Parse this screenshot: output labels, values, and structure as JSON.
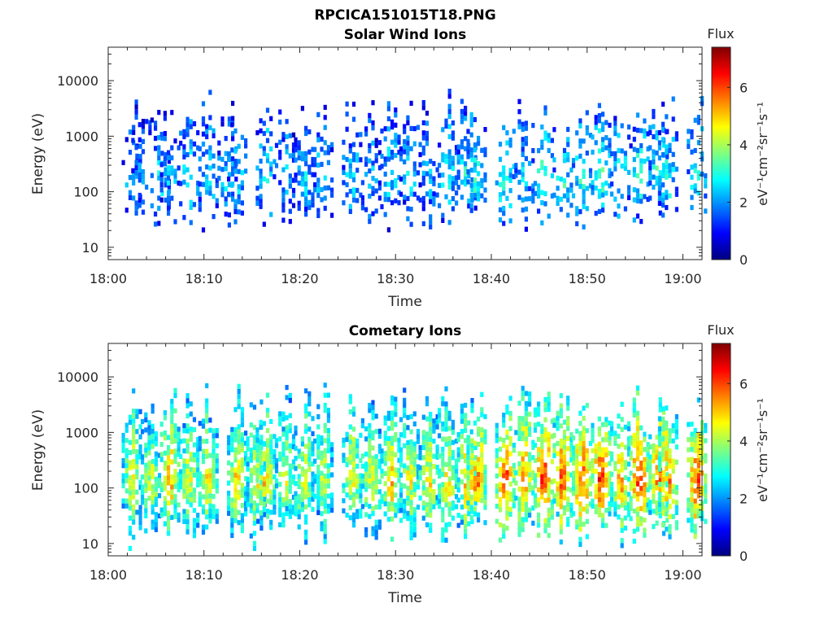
{
  "figure": {
    "title": "RPCICA151015T18.PNG"
  },
  "colormap": [
    "#00007f",
    "#0000ff",
    "#007fff",
    "#00ffff",
    "#7fff7f",
    "#ffff00",
    "#ff7f00",
    "#ff0000",
    "#7f0000"
  ],
  "chart_data": [
    {
      "type": "heatmap",
      "title": "Solar Wind Ions",
      "xlabel": "Time",
      "ylabel": "Energy (eV)",
      "xscale": "time",
      "yscale": "log",
      "xlim": [
        "18:00",
        "19:02"
      ],
      "ylim": [
        6,
        40000
      ],
      "xticks": [
        "18:00",
        "18:10",
        "18:20",
        "18:30",
        "18:40",
        "18:50",
        "19:00"
      ],
      "yticks": [
        "10",
        "100",
        "1000",
        "10000"
      ],
      "colorbar": {
        "label": "Flux",
        "unit": "eV⁻¹cm⁻²sr⁻¹s⁻¹",
        "range": [
          0,
          7.4
        ],
        "ticks": [
          "0",
          "2",
          "4",
          "6"
        ]
      },
      "bursts": [
        {
          "t": "18:02",
          "flux": 2.4
        },
        {
          "t": "18:03",
          "flux": 2.0
        },
        {
          "t": "18:05",
          "flux": 2.6
        },
        {
          "t": "18:06",
          "flux": 2.4
        },
        {
          "t": "18:08",
          "flux": 2.8
        },
        {
          "t": "18:10",
          "flux": 2.6
        },
        {
          "t": "18:12",
          "flux": 2.4
        },
        {
          "t": "18:13",
          "flux": 2.6
        },
        {
          "t": "18:16",
          "flux": 2.8
        },
        {
          "t": "18:18",
          "flux": 2.2
        },
        {
          "t": "18:20",
          "flux": 2.4
        },
        {
          "t": "18:22",
          "flux": 2.6
        },
        {
          "t": "18:25",
          "flux": 2.6
        },
        {
          "t": "18:27",
          "flux": 2.2
        },
        {
          "t": "18:29",
          "flux": 2.6
        },
        {
          "t": "18:31",
          "flux": 2.4
        },
        {
          "t": "18:33",
          "flux": 2.2
        },
        {
          "t": "18:35",
          "flux": 2.8
        },
        {
          "t": "18:37",
          "flux": 3.0
        },
        {
          "t": "18:38",
          "flux": 3.2
        },
        {
          "t": "18:41",
          "flux": 3.2
        },
        {
          "t": "18:43",
          "flux": 2.6
        },
        {
          "t": "18:45",
          "flux": 3.4
        },
        {
          "t": "18:47",
          "flux": 3.0
        },
        {
          "t": "18:49",
          "flux": 3.0
        },
        {
          "t": "18:51",
          "flux": 3.4
        },
        {
          "t": "18:53",
          "flux": 2.8
        },
        {
          "t": "18:55",
          "flux": 3.0
        },
        {
          "t": "18:57",
          "flux": 3.2
        },
        {
          "t": "18:58",
          "flux": 2.8
        },
        {
          "t": "19:01",
          "flux": 3.0
        }
      ]
    },
    {
      "type": "heatmap",
      "title": "Cometary Ions",
      "xlabel": "Time",
      "ylabel": "Energy (eV)",
      "xscale": "time",
      "yscale": "log",
      "xlim": [
        "18:00",
        "19:02"
      ],
      "ylim": [
        6,
        40000
      ],
      "xticks": [
        "18:00",
        "18:10",
        "18:20",
        "18:30",
        "18:40",
        "18:50",
        "19:00"
      ],
      "yticks": [
        "10",
        "100",
        "1000",
        "10000"
      ],
      "colorbar": {
        "label": "Flux",
        "unit": "eV⁻¹cm⁻²sr⁻¹s⁻¹",
        "range": [
          0,
          7.4
        ],
        "ticks": [
          "0",
          "2",
          "4",
          "6"
        ]
      },
      "bursts": [
        {
          "t": "18:02",
          "flux": 4.6
        },
        {
          "t": "18:04",
          "flux": 4.4
        },
        {
          "t": "18:06",
          "flux": 5.4
        },
        {
          "t": "18:08",
          "flux": 4.6
        },
        {
          "t": "18:10",
          "flux": 4.8
        },
        {
          "t": "18:13",
          "flux": 5.0
        },
        {
          "t": "18:15",
          "flux": 4.6
        },
        {
          "t": "18:16",
          "flux": 5.2
        },
        {
          "t": "18:18",
          "flux": 4.4
        },
        {
          "t": "18:20",
          "flux": 4.6
        },
        {
          "t": "18:22",
          "flux": 4.4
        },
        {
          "t": "18:25",
          "flux": 4.8
        },
        {
          "t": "18:27",
          "flux": 4.6
        },
        {
          "t": "18:29",
          "flux": 5.2
        },
        {
          "t": "18:31",
          "flux": 4.6
        },
        {
          "t": "18:33",
          "flux": 4.8
        },
        {
          "t": "18:35",
          "flux": 4.8
        },
        {
          "t": "18:37",
          "flux": 5.2
        },
        {
          "t": "18:38",
          "flux": 5.8
        },
        {
          "t": "18:41",
          "flux": 6.2
        },
        {
          "t": "18:43",
          "flux": 5.6
        },
        {
          "t": "18:45",
          "flux": 6.4
        },
        {
          "t": "18:47",
          "flux": 6.0
        },
        {
          "t": "18:49",
          "flux": 6.2
        },
        {
          "t": "18:51",
          "flux": 6.6
        },
        {
          "t": "18:53",
          "flux": 5.4
        },
        {
          "t": "18:55",
          "flux": 6.4
        },
        {
          "t": "18:57",
          "flux": 6.0
        },
        {
          "t": "18:58",
          "flux": 5.8
        },
        {
          "t": "19:01",
          "flux": 6.2
        }
      ]
    }
  ]
}
